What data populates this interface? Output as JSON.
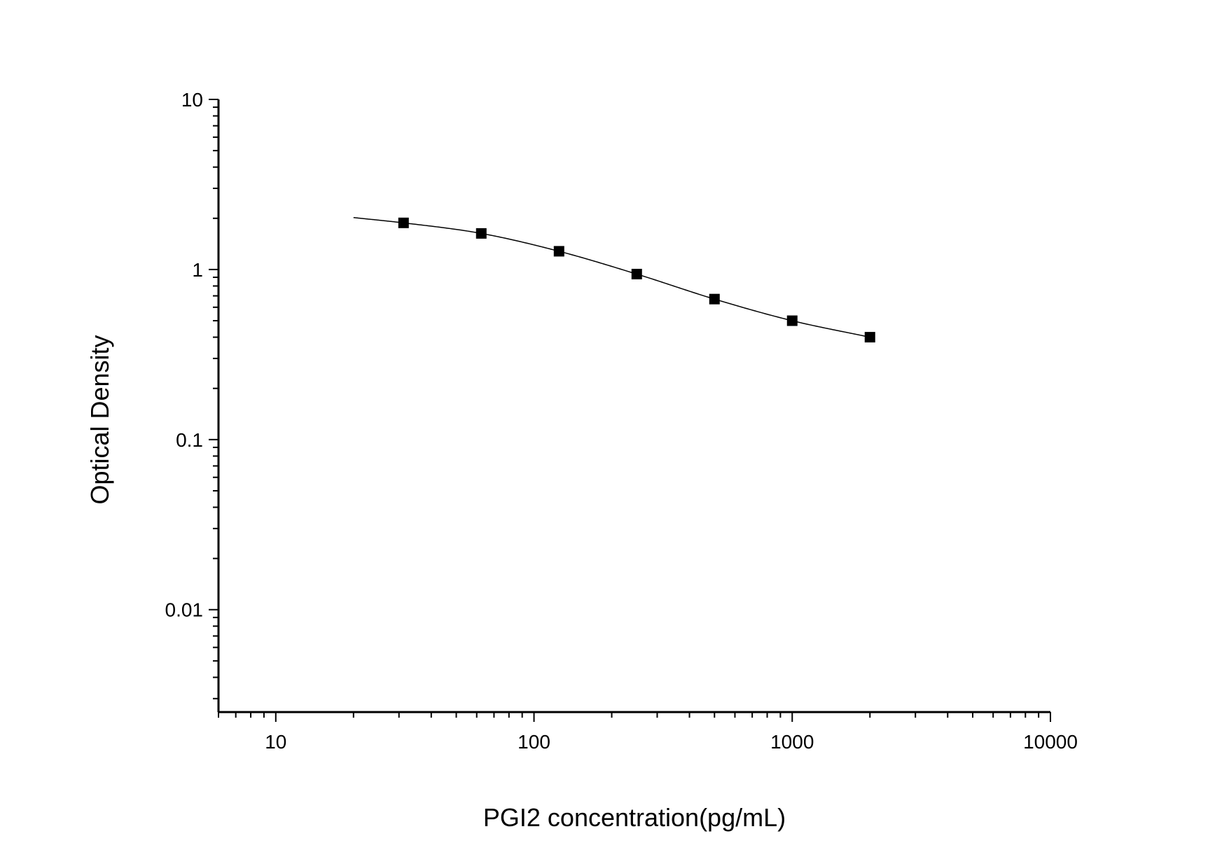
{
  "chart_data": {
    "type": "scatter",
    "title": "",
    "xlabel": "PGI2 concentration(pg/mL)",
    "ylabel": "Optical Density",
    "x_scale": "log",
    "y_scale": "log",
    "xlim": [
      6,
      10000
    ],
    "ylim": [
      0.0025,
      10
    ],
    "x_ticks": [
      10,
      100,
      1000,
      10000
    ],
    "x_tick_labels": [
      "10",
      "100",
      "1000",
      "10000"
    ],
    "y_ticks": [
      0.01,
      0.1,
      1,
      10
    ],
    "y_tick_labels": [
      "0.01",
      "0.1",
      "1",
      "10"
    ],
    "grid": false,
    "legend": "none",
    "series": [
      {
        "marker": "square",
        "color": "#000000",
        "x": [
          31.25,
          62.5,
          125,
          250,
          500,
          1000,
          2000
        ],
        "y": [
          1.88,
          1.63,
          1.28,
          0.94,
          0.67,
          0.5,
          0.4
        ]
      }
    ],
    "fit_curve": {
      "color": "#000000",
      "x": [
        20,
        31.25,
        62.5,
        125,
        250,
        500,
        1000,
        2000
      ],
      "y": [
        2.02,
        1.88,
        1.63,
        1.28,
        0.94,
        0.67,
        0.5,
        0.4
      ]
    }
  }
}
